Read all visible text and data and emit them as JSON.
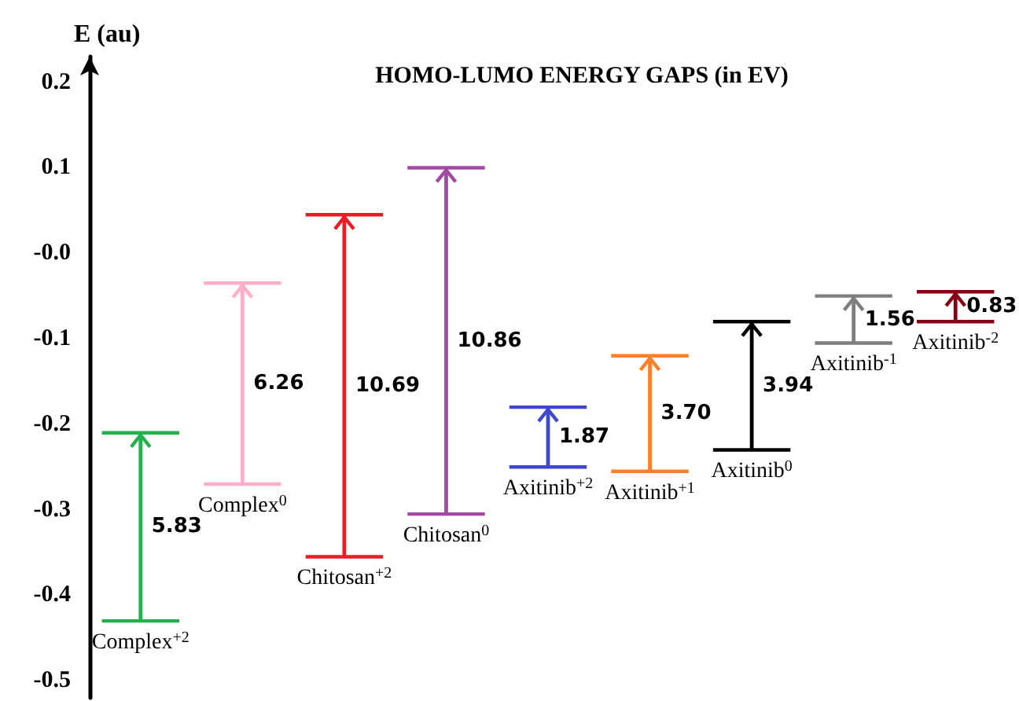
{
  "chart_data": {
    "type": "bar",
    "title": "HOMO-LUMO ENERGY GAPS (in EV)",
    "ylabel": "E (au)",
    "categories": [
      "Complex$^{+2}$",
      "Complex$^{0}$",
      "Chitosan$^{+2}$",
      "Chitosan$^{0}$",
      "Axitinib$^{+2}$",
      "Axitinib$^{+1}$",
      "Axitinib$^{0}$",
      "Axitinib$^{-1}$",
      "Axitinib$^{-2}$"
    ],
    "base": [
      -0.43,
      -0.27,
      -0.355,
      -0.305,
      -0.25,
      -0.255,
      -0.23,
      -0.105,
      -0.08
    ],
    "values": [
      0.22,
      0.235,
      0.4,
      0.405,
      0.07,
      0.135,
      0.15,
      0.055,
      0.035
    ],
    "colors": [
      "#22b14c",
      "#ffaec9",
      "#ed1c24",
      "#a349a4",
      "#3f48cc",
      "#ff7f27",
      "#000000",
      "#7f7f7f",
      "#880015"
    ],
    "annotations": [
      "5.83",
      "6.26",
      "10.69",
      "10.86",
      "1.87",
      "3.70",
      "3.94",
      "1.56",
      "0.83"
    ],
    "ylim": [
      -0.52,
      0.23
    ],
    "yticks": [
      0.2,
      0.1,
      {
        "value": 0,
        "label": "-0.0"
      },
      -0.1,
      -0.2,
      -0.3,
      -0.4,
      -0.5
    ],
    "grid": false
  }
}
